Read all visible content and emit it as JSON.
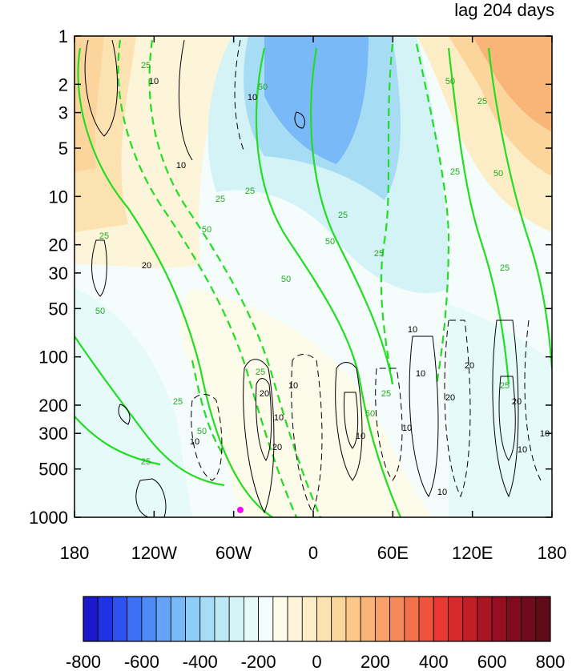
{
  "chart_data": {
    "type": "heatmap",
    "title": "lag 204 days",
    "x_ticks": [
      "180",
      "120W",
      "60W",
      "0",
      "60E",
      "120E",
      "180"
    ],
    "y_ticks": [
      "1",
      "2",
      "3",
      "5",
      "10",
      "20",
      "30",
      "50",
      "100",
      "200",
      "300",
      "500",
      "1000"
    ],
    "y_values": [
      1,
      2,
      3,
      5,
      10,
      20,
      30,
      50,
      100,
      200,
      300,
      500,
      1000
    ],
    "y_scale": "log",
    "y_reversed": true,
    "colorbar": {
      "ticks": [
        "-800",
        "-600",
        "-400",
        "-200",
        "0",
        "200",
        "400",
        "600",
        "800"
      ],
      "range": [
        -800,
        800
      ],
      "interval": 50,
      "colors": [
        "#1a1acc",
        "#1f33e6",
        "#2e52f0",
        "#3d70f5",
        "#4f8bf7",
        "#64a3f7",
        "#79b9f7",
        "#8fcdf7",
        "#a6ddf5",
        "#bde9f5",
        "#d3f3f7",
        "#e6faf9",
        "#f4fdfb",
        "#fdfbea",
        "#fdf5d9",
        "#fdedc6",
        "#fde2b1",
        "#fcd59d",
        "#fbc78a",
        "#f9b478",
        "#f7a067",
        "#f58a58",
        "#f2704a",
        "#ee543d",
        "#e63a33",
        "#d62a2c",
        "#c01f28",
        "#a81524",
        "#960e21",
        "#820a1f",
        "#700a1c",
        "#600a1a"
      ]
    },
    "green_contour_labels": [
      "25",
      "50",
      "25",
      "25",
      "50",
      "25",
      "25",
      "50",
      "25",
      "50",
      "25",
      "50",
      "25",
      "25",
      "50",
      "25",
      "50",
      "25",
      "50",
      "25",
      "25",
      "50",
      "25"
    ],
    "black_contour_labels": [
      "10",
      "10",
      "10",
      "20",
      "10",
      "10",
      "10",
      "20",
      "20",
      "10",
      "10",
      "10",
      "20",
      "10",
      "20",
      "10",
      "10",
      "20",
      "10"
    ],
    "marker": {
      "lon": -55,
      "p": 900,
      "color": "#ff00ff"
    }
  }
}
